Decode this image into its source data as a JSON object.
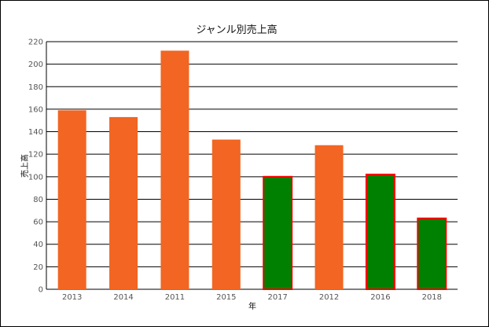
{
  "chart_data": {
    "type": "bar",
    "title": "ジャンル別売上高",
    "xlabel": "年",
    "ylabel": "売上高",
    "categories": [
      "2013",
      "2014",
      "2011",
      "2015",
      "2017",
      "2012",
      "2016",
      "2018"
    ],
    "values": [
      159,
      153,
      212,
      133,
      100,
      128,
      102,
      63
    ],
    "highlighted": [
      false,
      false,
      false,
      false,
      true,
      false,
      true,
      true
    ],
    "ylim": [
      0,
      220
    ],
    "yticks": [
      0,
      20,
      40,
      60,
      80,
      100,
      120,
      140,
      160,
      180,
      200,
      220
    ],
    "grid": true,
    "colors": {
      "bar": "#f26522",
      "highlight_fill": "#008000",
      "highlight_border": "#ff0000",
      "grid": "#000000"
    }
  }
}
